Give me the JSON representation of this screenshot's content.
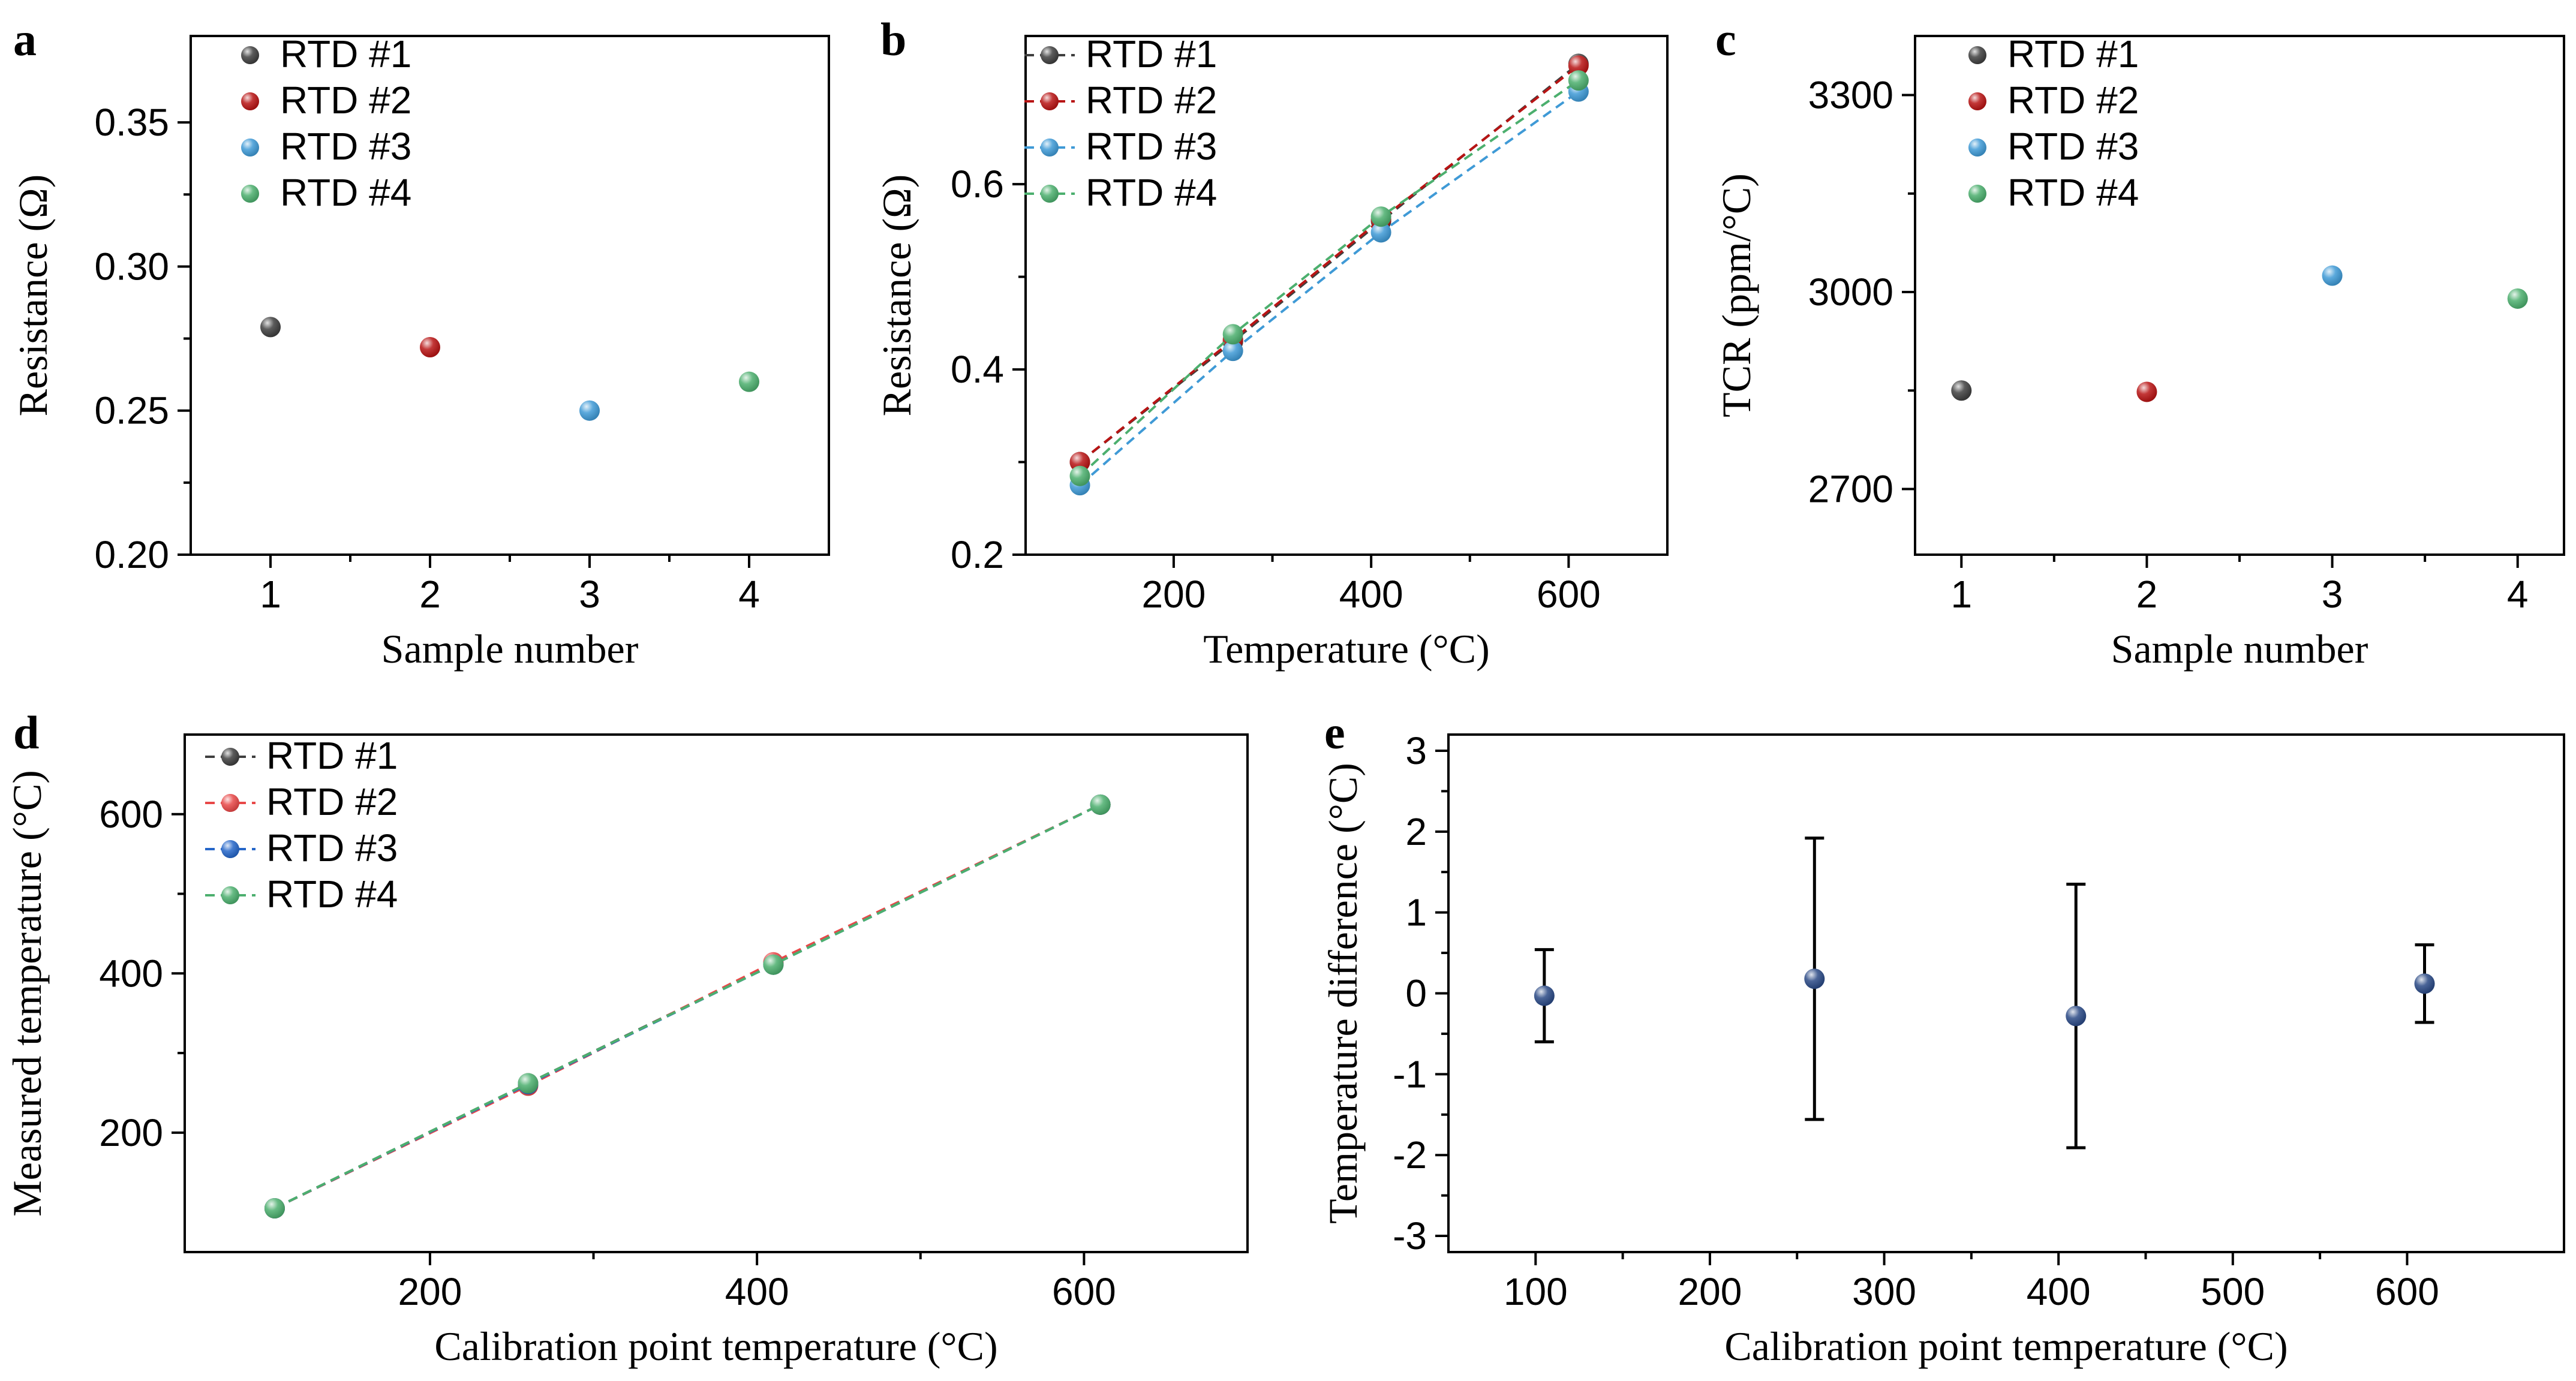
{
  "chart_data": [
    {
      "panel": "a",
      "type": "scatter",
      "xlabel": "Sample number",
      "ylabel": "Resistance (Ω)",
      "xlim": [
        0.5,
        4.5
      ],
      "ylim": [
        0.2,
        0.38
      ],
      "xticks": [
        1,
        2,
        3,
        4
      ],
      "yticks": [
        0.2,
        0.25,
        0.3,
        0.35
      ],
      "ytick_labels": [
        "0.20",
        "0.25",
        "0.30",
        "0.35"
      ],
      "legend": "top-left",
      "series": [
        {
          "name": "RTD #1",
          "color": "#3f3f3f",
          "x": [
            1
          ],
          "y": [
            0.279
          ]
        },
        {
          "name": "RTD #2",
          "color": "#b81414",
          "x": [
            2
          ],
          "y": [
            0.272
          ]
        },
        {
          "name": "RTD #3",
          "color": "#3f9ad6",
          "x": [
            3
          ],
          "y": [
            0.25
          ]
        },
        {
          "name": "RTD #4",
          "color": "#4caf6e",
          "x": [
            4
          ],
          "y": [
            0.26
          ]
        }
      ]
    },
    {
      "panel": "b",
      "type": "line",
      "xlabel": "Temperature (°C)",
      "ylabel": "Resistance (Ω)",
      "xlim": [
        50,
        700
      ],
      "ylim": [
        0.2,
        0.76
      ],
      "xticks": [
        200,
        400,
        600
      ],
      "yticks": [
        0.2,
        0.4,
        0.6
      ],
      "ytick_labels": [
        "0.2",
        "0.4",
        "0.6"
      ],
      "legend": "top-left",
      "dashed": true,
      "series": [
        {
          "name": "RTD #1",
          "color": "#3f3f3f",
          "x": [
            105,
            260,
            410,
            610
          ],
          "y": [
            0.3,
            0.43,
            0.56,
            0.73
          ]
        },
        {
          "name": "RTD #2",
          "color": "#b81414",
          "x": [
            105,
            260,
            410,
            610
          ],
          "y": [
            0.3,
            0.432,
            0.562,
            0.728
          ]
        },
        {
          "name": "RTD #3",
          "color": "#3f9ad6",
          "x": [
            105,
            260,
            410,
            610
          ],
          "y": [
            0.275,
            0.42,
            0.548,
            0.7
          ]
        },
        {
          "name": "RTD #4",
          "color": "#4caf6e",
          "x": [
            105,
            260,
            410,
            610
          ],
          "y": [
            0.285,
            0.438,
            0.565,
            0.712
          ]
        }
      ]
    },
    {
      "panel": "c",
      "type": "scatter",
      "xlabel": "Sample number",
      "ylabel": "TCR (ppm/°C)",
      "xlim": [
        0.75,
        4.25
      ],
      "ylim": [
        2600,
        3390
      ],
      "xticks": [
        1,
        2,
        3,
        4
      ],
      "yticks": [
        2700,
        3000,
        3300
      ],
      "legend": "top-left",
      "series": [
        {
          "name": "RTD #1",
          "color": "#3f3f3f",
          "x": [
            1
          ],
          "y": [
            2850
          ]
        },
        {
          "name": "RTD #2",
          "color": "#b81414",
          "x": [
            2
          ],
          "y": [
            2848
          ]
        },
        {
          "name": "RTD #3",
          "color": "#3f9ad6",
          "x": [
            3
          ],
          "y": [
            3025
          ]
        },
        {
          "name": "RTD #4",
          "color": "#4caf6e",
          "x": [
            4
          ],
          "y": [
            2990
          ]
        }
      ]
    },
    {
      "panel": "d",
      "type": "line",
      "xlabel": "Calibration point temperature (°C)",
      "ylabel": "Measured temperature (°C)",
      "xlim": [
        50,
        700
      ],
      "ylim": [
        50,
        700
      ],
      "xticks": [
        200,
        400,
        600
      ],
      "yticks": [
        200,
        400,
        600
      ],
      "legend": "top-left",
      "dashed": true,
      "series": [
        {
          "name": "RTD #1",
          "color": "#3f3f3f",
          "x": [
            105,
            260,
            410,
            610
          ],
          "y": [
            105,
            262,
            412,
            612
          ]
        },
        {
          "name": "RTD #2",
          "color": "#e84848",
          "x": [
            105,
            260,
            410,
            610
          ],
          "y": [
            105,
            259,
            414,
            612
          ]
        },
        {
          "name": "RTD #3",
          "color": "#2566c9",
          "x": [
            105,
            260,
            410,
            610
          ],
          "y": [
            105,
            261,
            411,
            612
          ]
        },
        {
          "name": "RTD #4",
          "color": "#4caf6e",
          "x": [
            105,
            260,
            410,
            610
          ],
          "y": [
            105,
            262,
            411,
            612
          ]
        }
      ]
    },
    {
      "panel": "e",
      "type": "scatter",
      "xlabel": "Calibration point temperature (°C)",
      "ylabel": "Temperature difference (°C)",
      "xlim": [
        50,
        690
      ],
      "ylim": [
        -3.2,
        3.2
      ],
      "xticks": [
        100,
        200,
        300,
        400,
        500,
        600
      ],
      "yticks": [
        -3,
        -2,
        -1,
        0,
        1,
        2,
        3
      ],
      "series": [
        {
          "color": "#2b4a86",
          "x": [
            105,
            260,
            410,
            610
          ],
          "y": [
            -0.03,
            0.18,
            -0.28,
            0.12
          ],
          "error": [
            0.57,
            1.74,
            1.63,
            0.48
          ]
        }
      ]
    }
  ]
}
